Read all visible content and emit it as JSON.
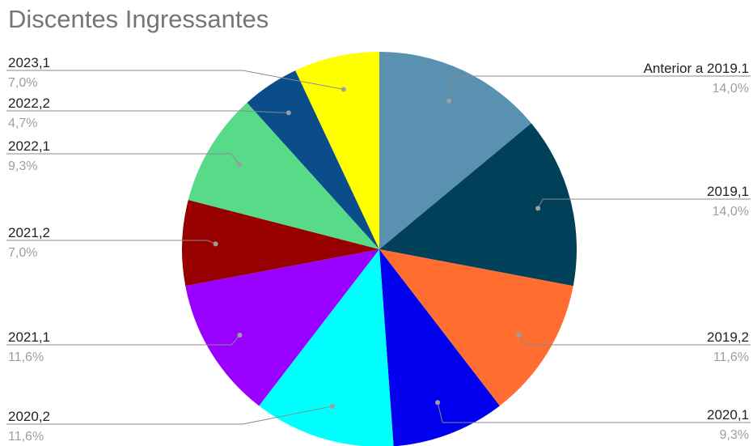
{
  "chart_data": {
    "type": "pie",
    "title": "Discentes Ingressantes",
    "start_angle_deg": 0,
    "direction": "clockwise",
    "slices": [
      {
        "label": "Anterior a 2019.1",
        "percent_label": "14,0%",
        "value": 14.0,
        "color": "#5a91b0"
      },
      {
        "label": "2019,1",
        "percent_label": "14,0%",
        "value": 14.0,
        "color": "#004058"
      },
      {
        "label": "2019,2",
        "percent_label": "11,6%",
        "value": 11.6,
        "color": "#ff6d31"
      },
      {
        "label": "2020,1",
        "percent_label": "9,3%",
        "value": 9.3,
        "color": "#0000ee"
      },
      {
        "label": "2020,2",
        "percent_label": "11,6%",
        "value": 11.6,
        "color": "#00ffff"
      },
      {
        "label": "2021,1",
        "percent_label": "11,6%",
        "value": 11.6,
        "color": "#9900ff"
      },
      {
        "label": "2021,2",
        "percent_label": "7,0%",
        "value": 7.0,
        "color": "#980000"
      },
      {
        "label": "2022,1",
        "percent_label": "9,3%",
        "value": 9.3,
        "color": "#57db88"
      },
      {
        "label": "2022,2",
        "percent_label": "4,7%",
        "value": 4.7,
        "color": "#0b4d8b"
      },
      {
        "label": "2023,1",
        "percent_label": "7,0%",
        "value": 7.0,
        "color": "#ffff00"
      }
    ]
  }
}
